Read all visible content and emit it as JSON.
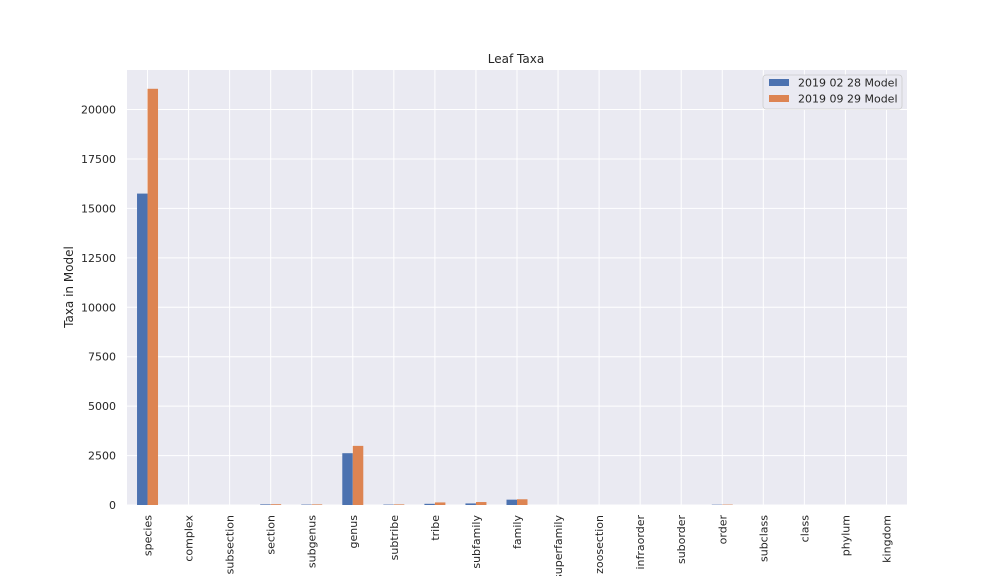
{
  "chart_data": {
    "type": "bar",
    "title": "Leaf Taxa",
    "xlabel": "",
    "ylabel": "Taxa in Model",
    "ylim": [
      0,
      22000
    ],
    "yticks": [
      0,
      2500,
      5000,
      7500,
      10000,
      12500,
      15000,
      17500,
      20000
    ],
    "categories": [
      "species",
      "complex",
      "subsection",
      "section",
      "subgenus",
      "genus",
      "subtribe",
      "tribe",
      "subfamily",
      "family",
      "superfamily",
      "zoosection",
      "infraorder",
      "suborder",
      "order",
      "subclass",
      "class",
      "phylum",
      "kingdom"
    ],
    "series": [
      {
        "name": "2019 02 28 Model",
        "color": "#4c72b0",
        "values": [
          15750,
          0,
          0,
          30,
          20,
          2620,
          20,
          60,
          80,
          270,
          0,
          0,
          0,
          0,
          15,
          0,
          0,
          0,
          0
        ]
      },
      {
        "name": "2019 09 29 Model",
        "color": "#dd8452",
        "values": [
          21050,
          0,
          0,
          40,
          30,
          2990,
          30,
          130,
          150,
          290,
          0,
          0,
          0,
          0,
          20,
          0,
          0,
          0,
          0
        ]
      }
    ],
    "grid": true,
    "legend": "top-right",
    "background": "#eaeaf2"
  }
}
